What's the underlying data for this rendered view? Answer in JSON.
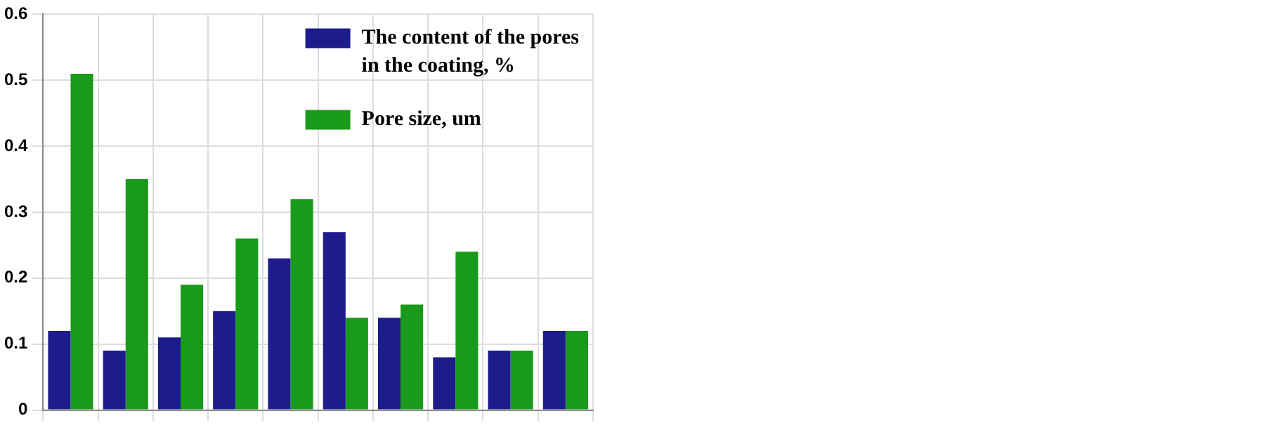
{
  "chart_data": {
    "type": "bar",
    "categories": [
      null,
      null,
      null,
      null,
      null,
      null,
      null,
      null,
      null,
      null
    ],
    "series": [
      {
        "name": "The content of the pores in the coating, %",
        "color": "#1c1c8c",
        "values": [
          0.12,
          0.09,
          0.11,
          0.15,
          0.23,
          0.27,
          0.14,
          0.08,
          0.09,
          0.12
        ]
      },
      {
        "name": "Pore size, um",
        "color": "#1a9a1a",
        "values": [
          0.51,
          0.35,
          0.19,
          0.26,
          0.32,
          0.14,
          0.16,
          0.24,
          0.09,
          0.12
        ]
      }
    ],
    "ylim": [
      0,
      0.6
    ],
    "yticks": [
      0,
      0.1,
      0.2,
      0.3,
      0.4,
      0.5,
      0.6
    ],
    "grid": true,
    "legend": "top right",
    "tick_labels": "y"
  }
}
